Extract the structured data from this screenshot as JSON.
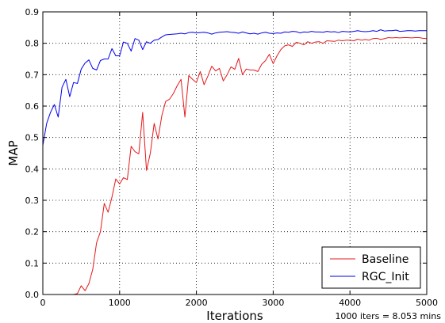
{
  "chart_data": {
    "type": "line",
    "title": "",
    "xlabel": "Iterations",
    "ylabel": "MAP",
    "xlim": [
      0,
      5000
    ],
    "ylim": [
      0.0,
      0.9
    ],
    "x_ticks": [
      0,
      1000,
      2000,
      3000,
      4000,
      5000
    ],
    "y_ticks": [
      0.0,
      0.1,
      0.2,
      0.3,
      0.4,
      0.5,
      0.6,
      0.7,
      0.8,
      0.9
    ],
    "y_tick_labels": [
      "0.0",
      "0.1",
      "0.2",
      "0.3",
      "0.4",
      "0.5",
      "0.6",
      "0.7",
      "0.8",
      "0.9"
    ],
    "grid": true,
    "legend_position": "bottom-right",
    "annotation": "1000 iters = 8.053 mins",
    "series": [
      {
        "name": "Baseline",
        "color": "#e41a1c",
        "x": [
          0,
          50,
          100,
          150,
          200,
          250,
          300,
          350,
          400,
          450,
          500,
          550,
          600,
          650,
          700,
          750,
          800,
          850,
          900,
          950,
          1000,
          1050,
          1100,
          1150,
          1200,
          1250,
          1300,
          1350,
          1400,
          1450,
          1500,
          1550,
          1600,
          1650,
          1700,
          1750,
          1800,
          1850,
          1900,
          1950,
          2000,
          2050,
          2100,
          2150,
          2200,
          2250,
          2300,
          2350,
          2400,
          2450,
          2500,
          2550,
          2600,
          2650,
          2700,
          2750,
          2800,
          2850,
          2900,
          2950,
          3000,
          3050,
          3100,
          3150,
          3200,
          3250,
          3300,
          3350,
          3400,
          3450,
          3500,
          3550,
          3600,
          3650,
          3700,
          3750,
          3800,
          3850,
          3900,
          3950,
          4000,
          4050,
          4100,
          4150,
          4200,
          4250,
          4300,
          4350,
          4400,
          4450,
          4500,
          4550,
          4600,
          4650,
          4700,
          4750,
          4800,
          4850,
          4900,
          4950,
          5000
        ],
        "y": [
          0.0,
          0.0,
          0.0,
          0.0,
          0.0,
          0.0,
          0.0,
          0.0,
          0.0,
          0.003,
          0.028,
          0.012,
          0.035,
          0.08,
          0.165,
          0.2,
          0.29,
          0.262,
          0.31,
          0.368,
          0.352,
          0.372,
          0.366,
          0.472,
          0.455,
          0.448,
          0.58,
          0.395,
          0.45,
          0.545,
          0.495,
          0.57,
          0.615,
          0.622,
          0.64,
          0.665,
          0.685,
          0.565,
          0.697,
          0.685,
          0.675,
          0.71,
          0.668,
          0.696,
          0.727,
          0.712,
          0.72,
          0.68,
          0.7,
          0.725,
          0.717,
          0.752,
          0.7,
          0.718,
          0.715,
          0.715,
          0.71,
          0.733,
          0.745,
          0.765,
          0.735,
          0.76,
          0.78,
          0.792,
          0.795,
          0.79,
          0.803,
          0.8,
          0.795,
          0.805,
          0.8,
          0.804,
          0.805,
          0.8,
          0.808,
          0.807,
          0.806,
          0.81,
          0.808,
          0.81,
          0.81,
          0.808,
          0.813,
          0.81,
          0.812,
          0.81,
          0.815,
          0.816,
          0.812,
          0.815,
          0.818,
          0.817,
          0.818,
          0.817,
          0.818,
          0.818,
          0.817,
          0.818,
          0.818,
          0.816,
          0.815
        ]
      },
      {
        "name": "RGC_Init",
        "color": "#0000ee",
        "x": [
          0,
          50,
          100,
          150,
          200,
          250,
          300,
          350,
          400,
          450,
          500,
          550,
          600,
          650,
          700,
          750,
          800,
          850,
          900,
          950,
          1000,
          1050,
          1100,
          1150,
          1200,
          1250,
          1300,
          1350,
          1400,
          1450,
          1500,
          1550,
          1600,
          1650,
          1700,
          1750,
          1800,
          1850,
          1900,
          1950,
          2000,
          2050,
          2100,
          2150,
          2200,
          2250,
          2300,
          2350,
          2400,
          2450,
          2500,
          2550,
          2600,
          2650,
          2700,
          2750,
          2800,
          2850,
          2900,
          2950,
          3000,
          3050,
          3100,
          3150,
          3200,
          3250,
          3300,
          3350,
          3400,
          3450,
          3500,
          3550,
          3600,
          3650,
          3700,
          3750,
          3800,
          3850,
          3900,
          3950,
          4000,
          4050,
          4100,
          4150,
          4200,
          4250,
          4300,
          4350,
          4400,
          4450,
          4500,
          4550,
          4600,
          4650,
          4700,
          4750,
          4800,
          4850,
          4900,
          4950,
          5000
        ],
        "y": [
          0.475,
          0.545,
          0.58,
          0.605,
          0.565,
          0.66,
          0.685,
          0.63,
          0.675,
          0.672,
          0.718,
          0.737,
          0.747,
          0.72,
          0.715,
          0.745,
          0.75,
          0.75,
          0.783,
          0.76,
          0.76,
          0.804,
          0.8,
          0.775,
          0.815,
          0.81,
          0.78,
          0.805,
          0.8,
          0.81,
          0.812,
          0.82,
          0.827,
          0.828,
          0.829,
          0.83,
          0.832,
          0.83,
          0.834,
          0.835,
          0.833,
          0.834,
          0.835,
          0.833,
          0.829,
          0.833,
          0.835,
          0.836,
          0.837,
          0.835,
          0.834,
          0.832,
          0.836,
          0.833,
          0.83,
          0.832,
          0.829,
          0.833,
          0.835,
          0.832,
          0.831,
          0.833,
          0.832,
          0.836,
          0.835,
          0.838,
          0.837,
          0.833,
          0.836,
          0.835,
          0.838,
          0.836,
          0.836,
          0.835,
          0.838,
          0.836,
          0.837,
          0.834,
          0.838,
          0.837,
          0.836,
          0.838,
          0.84,
          0.838,
          0.837,
          0.838,
          0.84,
          0.838,
          0.843,
          0.839,
          0.84,
          0.84,
          0.842,
          0.838,
          0.839,
          0.84,
          0.84,
          0.839,
          0.84,
          0.84,
          0.84
        ]
      }
    ]
  }
}
